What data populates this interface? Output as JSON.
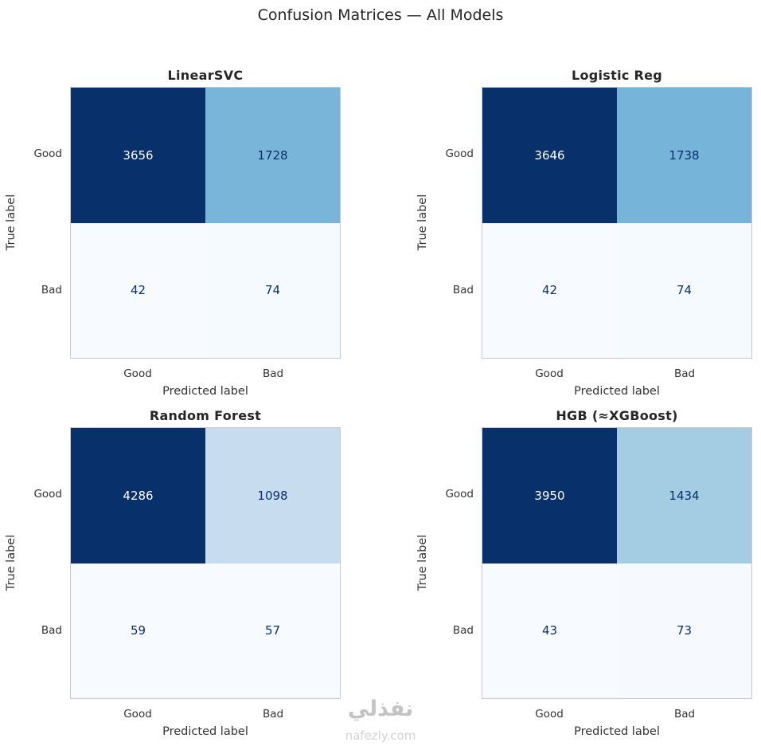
{
  "title": "Confusion Matrices — All Models",
  "watermark": {
    "arabic": "نفذلي",
    "site": "nafezly.com"
  },
  "chart_data": [
    {
      "type": "heatmap",
      "title": "LinearSVC",
      "x_categories": [
        "Good",
        "Bad"
      ],
      "y_categories": [
        "Good",
        "Bad"
      ],
      "xlabel": "Predicted label",
      "ylabel": "True label",
      "colormap": "Blues",
      "matrix": [
        [
          3656,
          1728
        ],
        [
          42,
          74
        ]
      ],
      "cell_colors": [
        [
          "#08306b",
          "#79b5d9"
        ],
        [
          "#f7fbff",
          "#f5fafe"
        ]
      ],
      "text_colors": [
        [
          "#ffffff",
          "#08306b"
        ],
        [
          "#08306b",
          "#08306b"
        ]
      ]
    },
    {
      "type": "heatmap",
      "title": "Logistic Reg",
      "x_categories": [
        "Good",
        "Bad"
      ],
      "y_categories": [
        "Good",
        "Bad"
      ],
      "xlabel": "Predicted label",
      "ylabel": "True label",
      "colormap": "Blues",
      "matrix": [
        [
          3646,
          1738
        ],
        [
          42,
          74
        ]
      ],
      "cell_colors": [
        [
          "#08306b",
          "#77b4d9"
        ],
        [
          "#f7fbff",
          "#f5fafe"
        ]
      ],
      "text_colors": [
        [
          "#ffffff",
          "#08306b"
        ],
        [
          "#08306b",
          "#08306b"
        ]
      ]
    },
    {
      "type": "heatmap",
      "title": "Random Forest",
      "x_categories": [
        "Good",
        "Bad"
      ],
      "y_categories": [
        "Good",
        "Bad"
      ],
      "xlabel": "Predicted label",
      "ylabel": "True label",
      "colormap": "Blues",
      "matrix": [
        [
          4286,
          1098
        ],
        [
          59,
          57
        ]
      ],
      "cell_colors": [
        [
          "#08306b",
          "#c7dcef"
        ],
        [
          "#f7fbff",
          "#f7fbff"
        ]
      ],
      "text_colors": [
        [
          "#ffffff",
          "#08306b"
        ],
        [
          "#08306b",
          "#08306b"
        ]
      ]
    },
    {
      "type": "heatmap",
      "title": "HGB (≈XGBoost)",
      "x_categories": [
        "Good",
        "Bad"
      ],
      "y_categories": [
        "Good",
        "Bad"
      ],
      "xlabel": "Predicted label",
      "ylabel": "True label",
      "colormap": "Blues",
      "matrix": [
        [
          3950,
          1434
        ],
        [
          43,
          73
        ]
      ],
      "cell_colors": [
        [
          "#08306b",
          "#a4cde3"
        ],
        [
          "#f7fbff",
          "#f6fafe"
        ]
      ],
      "text_colors": [
        [
          "#ffffff",
          "#08306b"
        ],
        [
          "#08306b",
          "#08306b"
        ]
      ]
    }
  ]
}
